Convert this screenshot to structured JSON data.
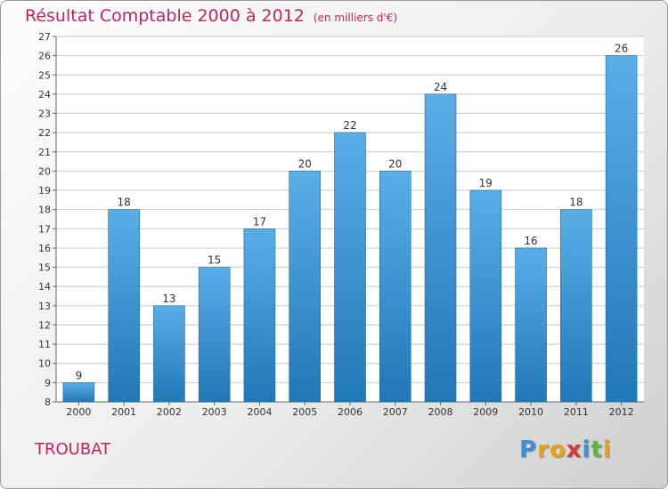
{
  "header": {
    "title": "Résultat Comptable 2000 à 2012",
    "subtitle": "(en milliers d'€)"
  },
  "footer": {
    "place": "TROUBAT",
    "logo": [
      "P",
      "r",
      "o",
      "x",
      "i",
      "t",
      "i"
    ],
    "logo_colors": [
      "#3b8fd6",
      "#e8a21a",
      "#e8a21a",
      "#d63a3a",
      "#3b8fd6",
      "#64b43c",
      "#e8a21a"
    ]
  },
  "colors": {
    "bar_top": "#5aaee8",
    "bar_bottom": "#2178b6",
    "grid": "#c8c8c8",
    "axis": "#666666",
    "title": "#c2255c"
  },
  "chart_data": {
    "type": "bar",
    "title": "Résultat Comptable 2000 à 2012",
    "subtitle": "(en milliers d'€)",
    "categories": [
      "2000",
      "2001",
      "2002",
      "2003",
      "2004",
      "2005",
      "2006",
      "2007",
      "2008",
      "2009",
      "2010",
      "2011",
      "2012"
    ],
    "values": [
      9,
      18,
      13,
      15,
      17,
      20,
      22,
      20,
      24,
      19,
      16,
      18,
      26
    ],
    "ylim": [
      8,
      27
    ],
    "yticks": [
      8,
      9,
      10,
      11,
      12,
      13,
      14,
      15,
      16,
      17,
      18,
      19,
      20,
      21,
      22,
      23,
      24,
      25,
      26,
      27
    ],
    "grid": true,
    "data_labels": true
  }
}
